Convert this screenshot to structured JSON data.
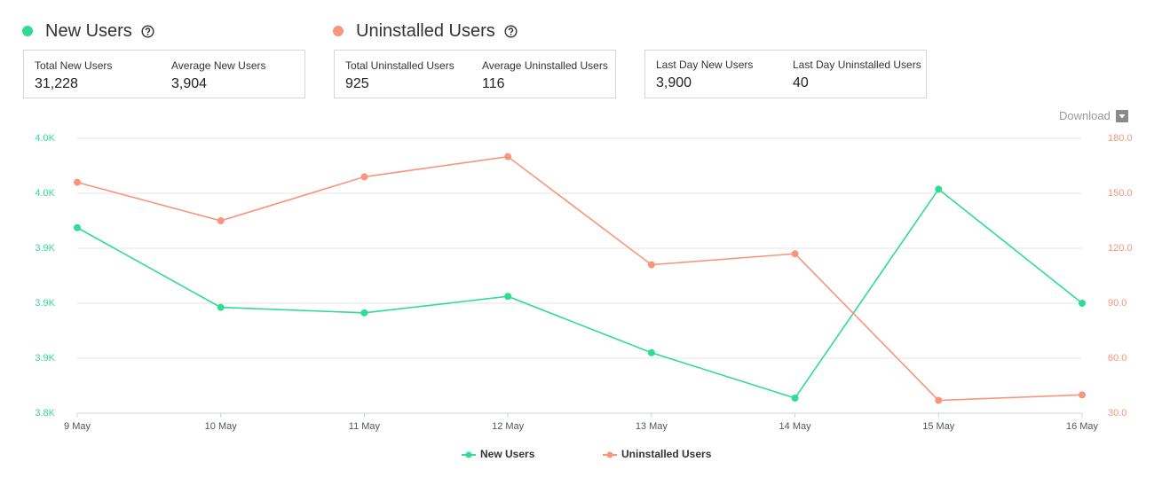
{
  "header": {
    "sections": [
      {
        "title": "New Users",
        "color": "#2fdc93"
      },
      {
        "title": "Uninstalled Users",
        "color": "#f8957b"
      }
    ]
  },
  "cards": [
    {
      "stats": [
        {
          "label": "Total New Users",
          "value": "31,228"
        },
        {
          "label": "Average New Users",
          "value": "3,904"
        }
      ]
    },
    {
      "stats": [
        {
          "label": "Total Uninstalled Users",
          "value": "925"
        },
        {
          "label": "Average Uninstalled Users",
          "value": "116"
        }
      ]
    },
    {
      "stats": [
        {
          "label": "Last Day New Users",
          "value": "3,900"
        },
        {
          "label": "Last Day Uninstalled Users",
          "value": "40"
        }
      ]
    }
  ],
  "download": "Download",
  "chart_data": {
    "type": "line",
    "categories": [
      "9 May",
      "10 May",
      "11 May",
      "12 May",
      "13 May",
      "14 May",
      "15 May",
      "16 May"
    ],
    "series": [
      {
        "name": "New Users",
        "color": "#2fdc93",
        "values": [
          3955,
          3897,
          3893,
          3905,
          3864,
          3831,
          3983,
          3900
        ]
      },
      {
        "name": "Uninstalled Users",
        "color": "#f8957b",
        "axis": "y2",
        "values": [
          156,
          135,
          159,
          170,
          111,
          117,
          37,
          40
        ]
      }
    ],
    "ylim": [
      3820,
      4020
    ],
    "yticks": [
      {
        "value": 3820,
        "label": "3.8K"
      },
      {
        "value": 3860,
        "label": "3.9K"
      },
      {
        "value": 3900,
        "label": "3.9K"
      },
      {
        "value": 3940,
        "label": "3.9K"
      },
      {
        "value": 3980,
        "label": "4.0K"
      },
      {
        "value": 4020,
        "label": "4.0K"
      }
    ],
    "y2lim": [
      30,
      180
    ],
    "y2ticks": [
      {
        "value": 30,
        "label": "30.0"
      },
      {
        "value": 60,
        "label": "60.0"
      },
      {
        "value": 90,
        "label": "90.0"
      },
      {
        "value": 120,
        "label": "120.0"
      },
      {
        "value": 150,
        "label": "150.0"
      },
      {
        "value": 180,
        "label": "180.0"
      }
    ],
    "grid": true,
    "legend": "bottom"
  }
}
